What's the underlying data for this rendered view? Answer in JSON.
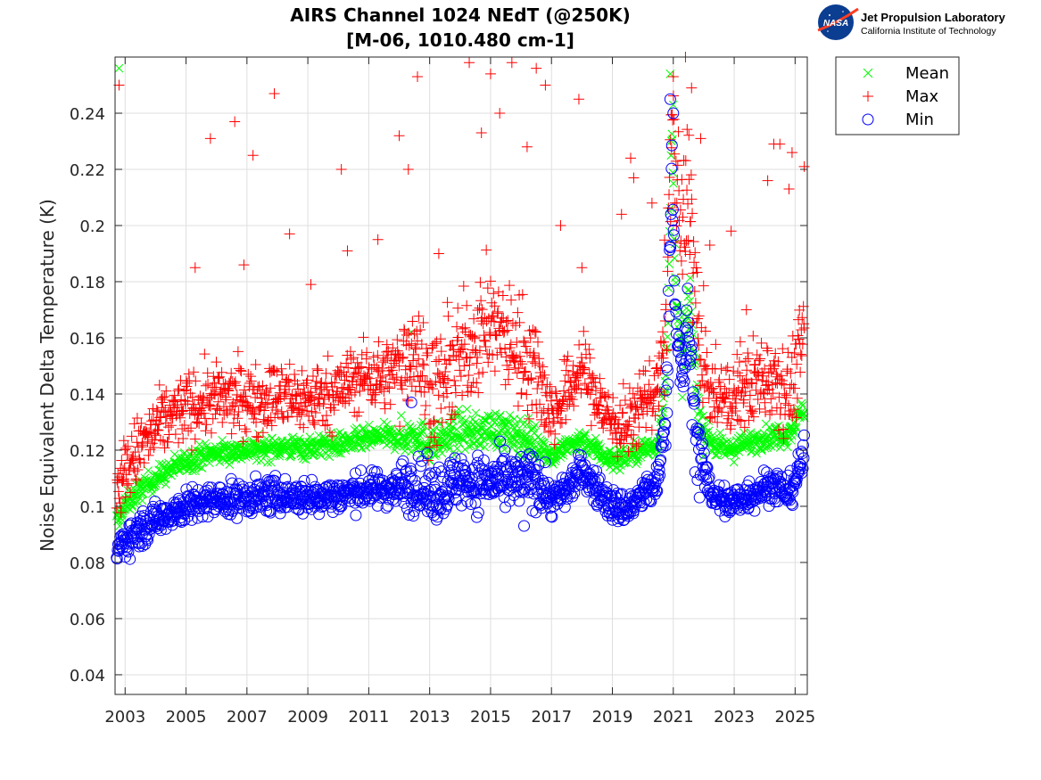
{
  "logo": {
    "agency": "NASA",
    "title": "Jet Propulsion Laboratory",
    "subtitle": "California Institute of Technology"
  },
  "chart_data": {
    "type": "scatter",
    "title": "AIRS Channel 1024 NEdT (@250K)",
    "subtitle": "[M-06, 1010.480 cm-1]",
    "xlabel": "",
    "ylabel": "Noise Equivalent Delta Temperature (K)",
    "xlim": [
      2002.67,
      2025.4
    ],
    "ylim": [
      0.033,
      0.26
    ],
    "xticks": [
      2003,
      2005,
      2007,
      2009,
      2011,
      2013,
      2015,
      2017,
      2019,
      2021,
      2023,
      2025
    ],
    "xtick_labels": [
      "2003",
      "2005",
      "2007",
      "2009",
      "2011",
      "2013",
      "2015",
      "2017",
      "2019",
      "2021",
      "2023",
      "2025"
    ],
    "yticks": [
      0.04,
      0.06,
      0.08,
      0.1,
      0.12,
      0.14,
      0.16,
      0.18,
      0.2,
      0.22,
      0.24
    ],
    "ytick_labels": [
      "0.04",
      "0.06",
      "0.08",
      "0.1",
      "0.12",
      "0.14",
      "0.16",
      "0.18",
      "0.2",
      "0.22",
      "0.24"
    ],
    "grid": true,
    "legend_position": "outside-top-right",
    "legend": [
      "Mean",
      "Max",
      "Min"
    ],
    "series": [
      {
        "name": "Mean",
        "marker": "x",
        "color": "#00ff00",
        "trend": [
          [
            2002.7,
            0.094
          ],
          [
            2003.0,
            0.1
          ],
          [
            2003.5,
            0.106
          ],
          [
            2004.0,
            0.11
          ],
          [
            2004.5,
            0.113
          ],
          [
            2005.0,
            0.116
          ],
          [
            2005.5,
            0.118
          ],
          [
            2006.0,
            0.119
          ],
          [
            2007.0,
            0.12
          ],
          [
            2008.0,
            0.121
          ],
          [
            2009.0,
            0.121
          ],
          [
            2010.0,
            0.122
          ],
          [
            2011.0,
            0.124
          ],
          [
            2011.5,
            0.125
          ],
          [
            2012.0,
            0.124
          ],
          [
            2012.5,
            0.126
          ],
          [
            2013.0,
            0.122
          ],
          [
            2013.5,
            0.124
          ],
          [
            2014.0,
            0.127
          ],
          [
            2014.5,
            0.126
          ],
          [
            2015.0,
            0.128
          ],
          [
            2015.5,
            0.126
          ],
          [
            2016.0,
            0.125
          ],
          [
            2016.5,
            0.123
          ],
          [
            2017.0,
            0.118
          ],
          [
            2017.5,
            0.121
          ],
          [
            2018.0,
            0.124
          ],
          [
            2018.5,
            0.12
          ],
          [
            2019.0,
            0.116
          ],
          [
            2019.5,
            0.118
          ],
          [
            2020.0,
            0.12
          ],
          [
            2020.5,
            0.122
          ],
          [
            2020.8,
            0.15
          ],
          [
            2020.95,
            0.235
          ],
          [
            2021.1,
            0.17
          ],
          [
            2021.3,
            0.15
          ],
          [
            2021.5,
            0.175
          ],
          [
            2021.7,
            0.15
          ],
          [
            2021.9,
            0.13
          ],
          [
            2022.3,
            0.122
          ],
          [
            2022.8,
            0.12
          ],
          [
            2023.3,
            0.122
          ],
          [
            2023.8,
            0.124
          ],
          [
            2024.3,
            0.125
          ],
          [
            2024.8,
            0.126
          ],
          [
            2025.3,
            0.135
          ]
        ],
        "spread": 0.004,
        "outliers": [
          [
            2002.8,
            0.256
          ],
          [
            2012.4,
            0.162
          ],
          [
            2020.9,
            0.254
          ],
          [
            2021.0,
            0.243
          ]
        ]
      },
      {
        "name": "Max",
        "marker": "+",
        "color": "#ff0000",
        "trend": [
          [
            2002.7,
            0.105
          ],
          [
            2003.0,
            0.113
          ],
          [
            2003.5,
            0.121
          ],
          [
            2004.0,
            0.127
          ],
          [
            2004.5,
            0.132
          ],
          [
            2005.0,
            0.135
          ],
          [
            2005.5,
            0.137
          ],
          [
            2006.0,
            0.138
          ],
          [
            2007.0,
            0.138
          ],
          [
            2008.0,
            0.139
          ],
          [
            2009.0,
            0.138
          ],
          [
            2010.0,
            0.141
          ],
          [
            2010.5,
            0.145
          ],
          [
            2011.0,
            0.147
          ],
          [
            2011.5,
            0.146
          ],
          [
            2012.0,
            0.15
          ],
          [
            2012.5,
            0.158
          ],
          [
            2013.0,
            0.14
          ],
          [
            2013.5,
            0.145
          ],
          [
            2014.0,
            0.152
          ],
          [
            2014.5,
            0.16
          ],
          [
            2015.0,
            0.165
          ],
          [
            2015.5,
            0.16
          ],
          [
            2016.0,
            0.155
          ],
          [
            2016.5,
            0.15
          ],
          [
            2017.0,
            0.132
          ],
          [
            2017.5,
            0.14
          ],
          [
            2018.0,
            0.15
          ],
          [
            2018.5,
            0.138
          ],
          [
            2019.0,
            0.13
          ],
          [
            2019.5,
            0.128
          ],
          [
            2020.0,
            0.138
          ],
          [
            2020.5,
            0.142
          ],
          [
            2020.8,
            0.17
          ],
          [
            2020.95,
            0.25
          ],
          [
            2021.1,
            0.21
          ],
          [
            2021.3,
            0.195
          ],
          [
            2021.5,
            0.22
          ],
          [
            2021.7,
            0.18
          ],
          [
            2021.9,
            0.15
          ],
          [
            2022.3,
            0.14
          ],
          [
            2022.8,
            0.138
          ],
          [
            2023.3,
            0.142
          ],
          [
            2023.8,
            0.145
          ],
          [
            2024.3,
            0.148
          ],
          [
            2024.8,
            0.14
          ],
          [
            2025.3,
            0.16
          ]
        ],
        "spread": 0.012,
        "outliers": [
          [
            2002.8,
            0.25
          ],
          [
            2005.3,
            0.185
          ],
          [
            2005.8,
            0.231
          ],
          [
            2006.6,
            0.237
          ],
          [
            2006.9,
            0.186
          ],
          [
            2007.2,
            0.225
          ],
          [
            2007.9,
            0.247
          ],
          [
            2008.4,
            0.197
          ],
          [
            2009.1,
            0.179
          ],
          [
            2010.1,
            0.22
          ],
          [
            2010.3,
            0.191
          ],
          [
            2011.3,
            0.195
          ],
          [
            2012.0,
            0.232
          ],
          [
            2012.3,
            0.22
          ],
          [
            2012.6,
            0.253
          ],
          [
            2013.3,
            0.19
          ],
          [
            2014.3,
            0.258
          ],
          [
            2014.7,
            0.233
          ],
          [
            2015.0,
            0.254
          ],
          [
            2015.3,
            0.24
          ],
          [
            2015.7,
            0.258
          ],
          [
            2016.2,
            0.228
          ],
          [
            2016.5,
            0.256
          ],
          [
            2016.8,
            0.25
          ],
          [
            2017.3,
            0.2
          ],
          [
            2017.9,
            0.245
          ],
          [
            2018.0,
            0.185
          ],
          [
            2019.3,
            0.204
          ],
          [
            2019.6,
            0.224
          ],
          [
            2019.7,
            0.217
          ],
          [
            2020.3,
            0.208
          ],
          [
            2021.0,
            0.253
          ],
          [
            2021.4,
            0.26
          ],
          [
            2021.6,
            0.249
          ],
          [
            2021.9,
            0.231
          ],
          [
            2022.2,
            0.193
          ],
          [
            2022.9,
            0.198
          ],
          [
            2023.4,
            0.17
          ],
          [
            2024.1,
            0.216
          ],
          [
            2024.3,
            0.229
          ],
          [
            2024.5,
            0.229
          ],
          [
            2024.8,
            0.213
          ],
          [
            2024.9,
            0.226
          ],
          [
            2025.3,
            0.221
          ]
        ]
      },
      {
        "name": "Min",
        "marker": "o",
        "color": "#0000ff",
        "trend": [
          [
            2002.7,
            0.084
          ],
          [
            2003.0,
            0.088
          ],
          [
            2003.5,
            0.092
          ],
          [
            2004.0,
            0.095
          ],
          [
            2004.5,
            0.098
          ],
          [
            2005.0,
            0.1
          ],
          [
            2005.5,
            0.101
          ],
          [
            2006.0,
            0.102
          ],
          [
            2007.0,
            0.103
          ],
          [
            2008.0,
            0.104
          ],
          [
            2009.0,
            0.103
          ],
          [
            2010.0,
            0.104
          ],
          [
            2010.5,
            0.105
          ],
          [
            2011.0,
            0.106
          ],
          [
            2011.5,
            0.106
          ],
          [
            2012.0,
            0.107
          ],
          [
            2012.5,
            0.108
          ],
          [
            2013.0,
            0.104
          ],
          [
            2013.5,
            0.106
          ],
          [
            2014.0,
            0.11
          ],
          [
            2014.5,
            0.108
          ],
          [
            2015.0,
            0.109
          ],
          [
            2015.5,
            0.108
          ],
          [
            2016.0,
            0.109
          ],
          [
            2016.5,
            0.11
          ],
          [
            2017.0,
            0.102
          ],
          [
            2017.5,
            0.106
          ],
          [
            2018.0,
            0.113
          ],
          [
            2018.5,
            0.106
          ],
          [
            2019.0,
            0.1
          ],
          [
            2019.5,
            0.099
          ],
          [
            2020.0,
            0.104
          ],
          [
            2020.5,
            0.108
          ],
          [
            2020.8,
            0.14
          ],
          [
            2020.95,
            0.225
          ],
          [
            2021.1,
            0.16
          ],
          [
            2021.3,
            0.145
          ],
          [
            2021.5,
            0.165
          ],
          [
            2021.7,
            0.13
          ],
          [
            2021.9,
            0.115
          ],
          [
            2022.3,
            0.104
          ],
          [
            2022.8,
            0.101
          ],
          [
            2023.3,
            0.103
          ],
          [
            2023.8,
            0.106
          ],
          [
            2024.3,
            0.108
          ],
          [
            2024.8,
            0.104
          ],
          [
            2025.3,
            0.118
          ]
        ],
        "spread": 0.006,
        "outliers": [
          [
            2016.1,
            0.093
          ],
          [
            2020.9,
            0.245
          ],
          [
            2021.0,
            0.24
          ],
          [
            2012.4,
            0.137
          ]
        ]
      }
    ]
  }
}
